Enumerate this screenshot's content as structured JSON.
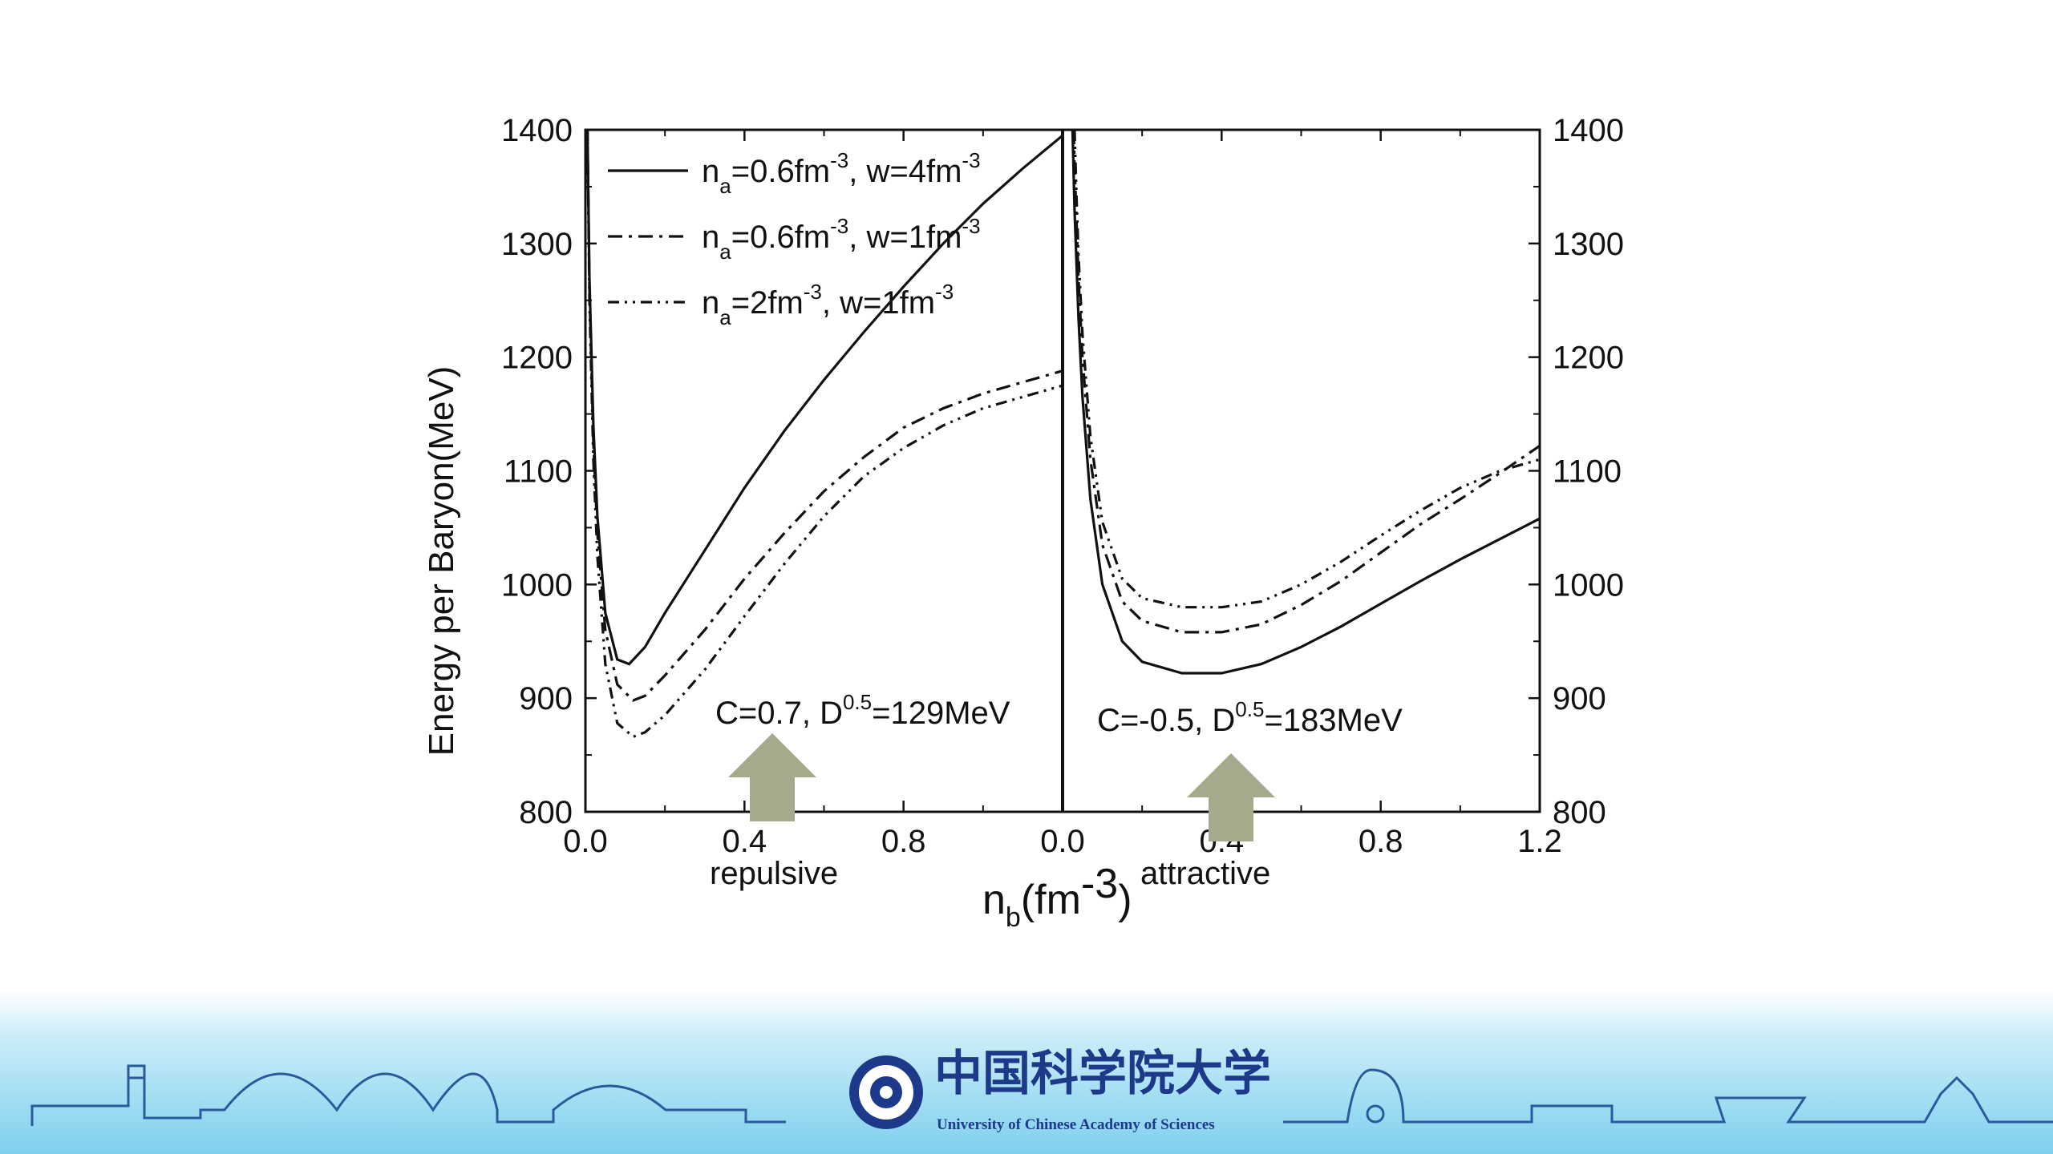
{
  "chart_data": [
    {
      "type": "line",
      "panel": "left",
      "xlabel": "",
      "ylabel": "Energy per Baryon(MeV)",
      "xlim": [
        0.0,
        1.2
      ],
      "ylim": [
        800,
        1400
      ],
      "x_ticks": [
        "0.0",
        "0.4",
        "0.8"
      ],
      "y_ticks": [
        "800",
        "900",
        "1000",
        "1100",
        "1200",
        "1300",
        "1400"
      ],
      "annotation": {
        "base": "C=0.7, D",
        "sup": "0.5",
        "tail": "=129MeV"
      },
      "arrow_at_x": 0.47,
      "caption": "repulsive",
      "series": [
        {
          "name": "n_a=0.6fm^-3, w=4fm^-3",
          "style": "solid",
          "x": [
            0.005,
            0.01,
            0.02,
            0.03,
            0.05,
            0.08,
            0.11,
            0.15,
            0.2,
            0.3,
            0.4,
            0.5,
            0.6,
            0.7,
            0.8,
            0.9,
            1.0,
            1.1,
            1.2
          ],
          "y": [
            1400,
            1270,
            1140,
            1060,
            975,
            934,
            930,
            945,
            975,
            1030,
            1085,
            1135,
            1180,
            1222,
            1262,
            1300,
            1335,
            1366,
            1395
          ]
        },
        {
          "name": "n_a=0.6fm^-3, w=1fm^-3",
          "style": "dashdot",
          "x": [
            0.005,
            0.01,
            0.02,
            0.03,
            0.05,
            0.08,
            0.12,
            0.15,
            0.2,
            0.3,
            0.4,
            0.5,
            0.6,
            0.7,
            0.8,
            0.9,
            1.0,
            1.1,
            1.2
          ],
          "y": [
            1400,
            1260,
            1125,
            1045,
            960,
            912,
            898,
            902,
            920,
            960,
            1005,
            1045,
            1082,
            1112,
            1138,
            1155,
            1168,
            1178,
            1188
          ]
        },
        {
          "name": "n_a=2fm^-3, w=1fm^-3",
          "style": "dashdotdot",
          "x": [
            0.005,
            0.01,
            0.02,
            0.03,
            0.05,
            0.08,
            0.12,
            0.15,
            0.2,
            0.3,
            0.4,
            0.5,
            0.6,
            0.7,
            0.8,
            0.9,
            1.0,
            1.1,
            1.2
          ],
          "y": [
            1400,
            1250,
            1110,
            1025,
            930,
            878,
            866,
            870,
            885,
            925,
            972,
            1018,
            1060,
            1095,
            1120,
            1140,
            1155,
            1165,
            1175
          ]
        }
      ]
    },
    {
      "type": "line",
      "panel": "right",
      "xlabel": "",
      "ylabel": "",
      "xlim": [
        0.0,
        1.2
      ],
      "ylim": [
        800,
        1400
      ],
      "x_ticks": [
        "0.0",
        "0.4",
        "0.8",
        "1.2"
      ],
      "y_ticks": [
        "800",
        "900",
        "1000",
        "1100",
        "1200",
        "1300",
        "1400"
      ],
      "annotation": {
        "base": "C=-0.5, D",
        "sup": "0.5",
        "tail": "=183MeV"
      },
      "arrow_at_x": 0.42,
      "caption": "attractive",
      "series": [
        {
          "name": "n_a=0.6fm^-3, w=4fm^-3",
          "style": "solid",
          "x": [
            0.025,
            0.03,
            0.04,
            0.05,
            0.07,
            0.1,
            0.15,
            0.2,
            0.3,
            0.4,
            0.5,
            0.6,
            0.7,
            0.8,
            0.9,
            1.0,
            1.1,
            1.2
          ],
          "y": [
            1400,
            1330,
            1235,
            1165,
            1075,
            1000,
            950,
            932,
            922,
            922,
            930,
            945,
            963,
            983,
            1003,
            1022,
            1040,
            1058
          ]
        },
        {
          "name": "n_a=0.6fm^-3, w=1fm^-3",
          "style": "dashdot",
          "x": [
            0.028,
            0.03,
            0.04,
            0.05,
            0.07,
            0.1,
            0.15,
            0.2,
            0.3,
            0.4,
            0.5,
            0.6,
            0.7,
            0.8,
            0.9,
            1.0,
            1.1,
            1.2
          ],
          "y": [
            1400,
            1370,
            1270,
            1200,
            1110,
            1035,
            985,
            968,
            958,
            958,
            965,
            982,
            1003,
            1028,
            1053,
            1075,
            1098,
            1122
          ]
        },
        {
          "name": "n_a=2fm^-3, w=1fm^-3",
          "style": "dashdotdot",
          "x": [
            0.03,
            0.035,
            0.04,
            0.05,
            0.07,
            0.1,
            0.15,
            0.2,
            0.3,
            0.4,
            0.5,
            0.6,
            0.7,
            0.8,
            0.9,
            1.0,
            1.1,
            1.2
          ],
          "y": [
            1400,
            1340,
            1290,
            1220,
            1130,
            1055,
            1005,
            988,
            980,
            980,
            985,
            1000,
            1020,
            1043,
            1065,
            1085,
            1100,
            1110
          ]
        }
      ]
    }
  ],
  "legend": [
    {
      "style": "solid",
      "pre": "n",
      "sub1": "a",
      "mid": "=0.6fm",
      "sup1": "-3",
      "mid2": ", w=4fm",
      "sup2": "-3"
    },
    {
      "style": "dashdot",
      "pre": "n",
      "sub1": "a",
      "mid": "=0.6fm",
      "sup1": "-3",
      "mid2": ", w=1fm",
      "sup2": "-3"
    },
    {
      "style": "dashdotdot",
      "pre": "n",
      "sub1": "a",
      "mid": "=2fm",
      "sup1": "-3",
      "mid2": ", w=1fm",
      "sup2": "-3"
    }
  ],
  "x_axis_title": {
    "pre": "n",
    "sub": "b",
    "mid": "(fm",
    "sup": "-3",
    "post": ")"
  },
  "colors": {
    "line": "#111111",
    "arrow": "#a4ab8c",
    "footer_top": "#c9ecf8",
    "footer_bottom": "#7fd0ee",
    "logo_blue": "#1d3a8a"
  },
  "footer": {
    "university_zh": "中国科学院大学",
    "university_en": "University of  Chinese Academy of Sciences",
    "logo_icon": "ucas-emblem-icon"
  }
}
